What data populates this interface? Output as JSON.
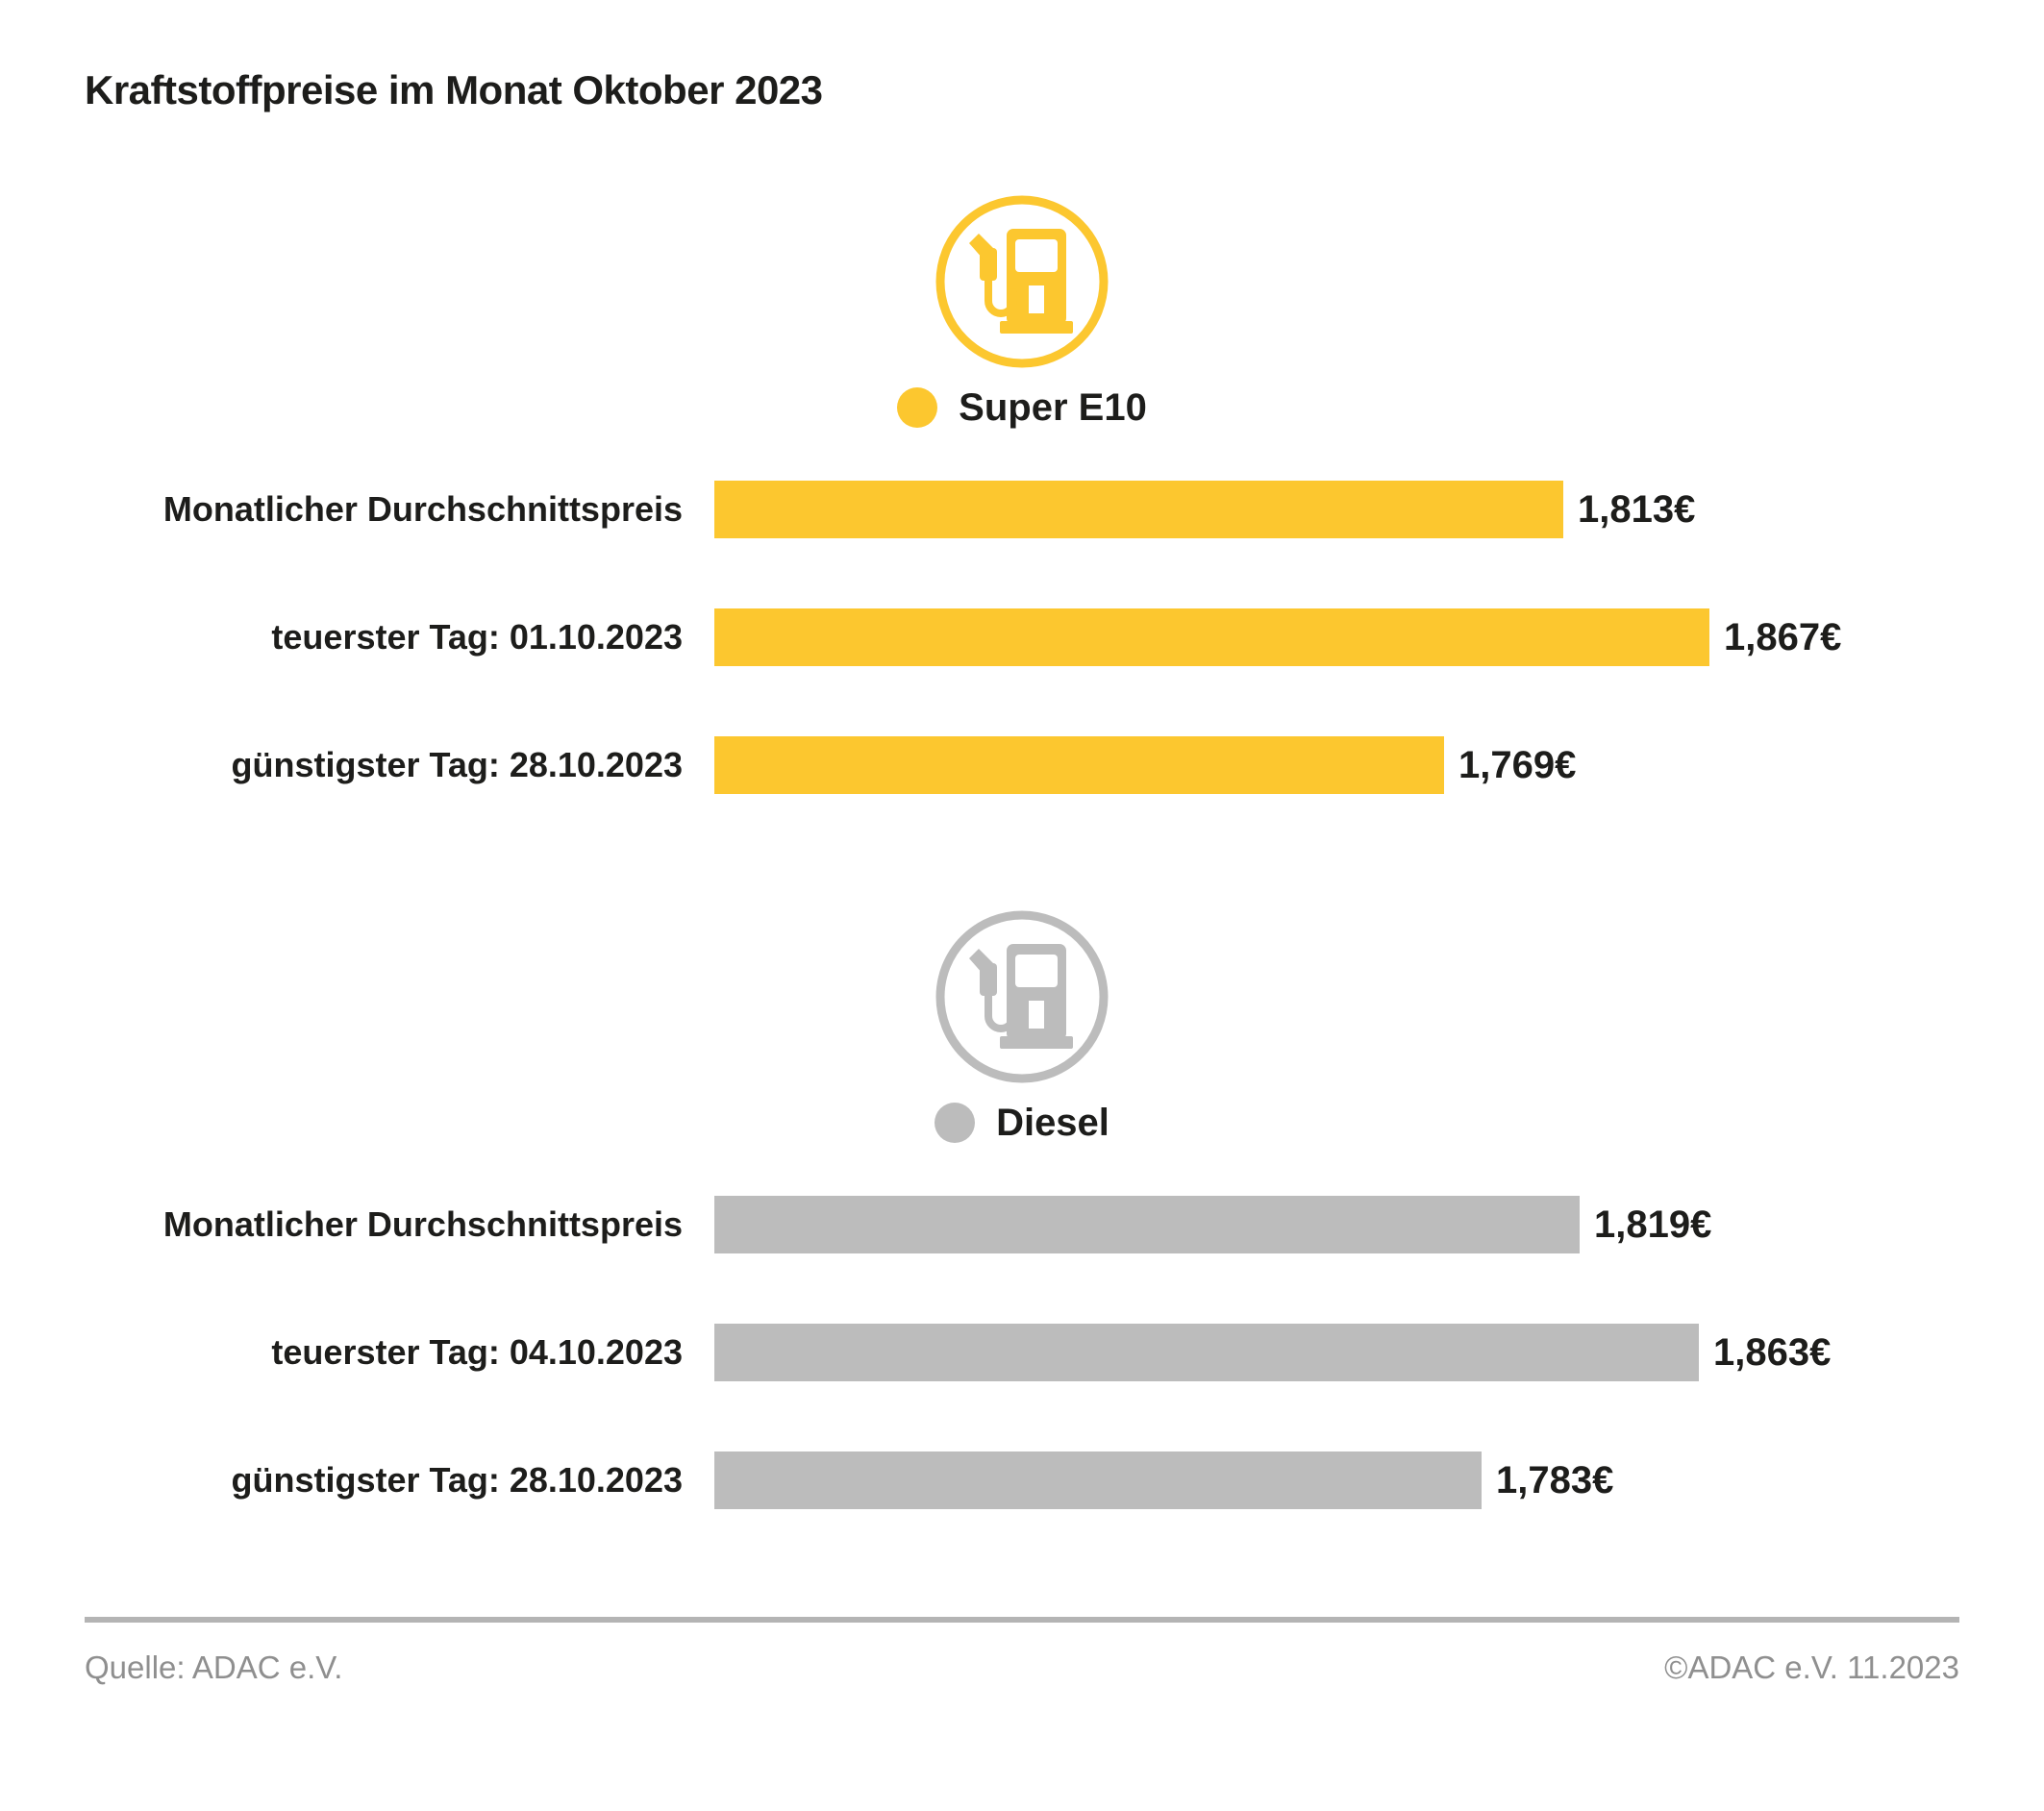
{
  "title": "Kraftstoffpreise im Monat Oktober 2023",
  "colors": {
    "super_e10": "#fcc72f",
    "diesel": "#bcbcbc",
    "text": "#1d1d1b",
    "footer_text": "#8f8f8f",
    "divider": "#b4b4b4"
  },
  "chart_data": {
    "type": "bar",
    "orientation": "horizontal",
    "title": "Kraftstoffpreise im Monat Oktober 2023",
    "xlabel": "",
    "ylabel": "",
    "unit": "€",
    "xlim": [
      1.5,
      1.9
    ],
    "grid": false,
    "groups": [
      {
        "name": "Super E10",
        "color": "#fcc72f",
        "icon": "fuel-pump-icon",
        "bars": [
          {
            "label": "Monatlicher Durchschnittspreis",
            "value": 1.813,
            "display": "1,813€"
          },
          {
            "label": "teuerster Tag: 01.10.2023",
            "value": 1.867,
            "display": "1,867€"
          },
          {
            "label": "günstigster Tag: 28.10.2023",
            "value": 1.769,
            "display": "1,769€"
          }
        ]
      },
      {
        "name": "Diesel",
        "color": "#bcbcbc",
        "icon": "fuel-pump-icon",
        "bars": [
          {
            "label": "Monatlicher Durchschnittspreis",
            "value": 1.819,
            "display": "1,819€"
          },
          {
            "label": "teuerster Tag: 04.10.2023",
            "value": 1.863,
            "display": "1,863€"
          },
          {
            "label": "günstigster Tag: 28.10.2023",
            "value": 1.783,
            "display": "1,783€"
          }
        ]
      }
    ]
  },
  "footer": {
    "source": "Quelle: ADAC e.V.",
    "copyright": "©ADAC e.V. 11.2023"
  }
}
